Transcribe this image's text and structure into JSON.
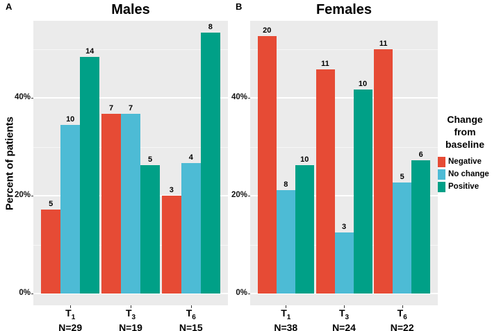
{
  "figure": {
    "panel_a_label": "A",
    "panel_b_label": "B",
    "y_axis_label": "Percent of patients",
    "y_ticks": [
      "0%",
      "20%",
      "40%"
    ],
    "background_color": "#FFFFFF",
    "panel_background_color": "#EBEBEB",
    "gridline_color": "#FFFFFF",
    "legend": {
      "position": "right",
      "title": "Change from baseline",
      "items": [
        {
          "label": "Negative",
          "color": "#E64B35"
        },
        {
          "label": "No change",
          "color": "#4DBBD5"
        },
        {
          "label": "Positive",
          "color": "#00A087"
        }
      ]
    }
  },
  "chart_data": [
    {
      "type": "bar",
      "panel": "A",
      "title": "Males",
      "ylabel": "Percent of patients",
      "ylim": [
        0,
        57
      ],
      "yticks_percent": [
        0,
        20,
        40
      ],
      "grid_major": [
        0,
        20,
        40
      ],
      "grid_minor": [
        10,
        30,
        50
      ],
      "categories": [
        {
          "label": "T",
          "sub": "1",
          "n": "N=29",
          "total": 29
        },
        {
          "label": "T",
          "sub": "3",
          "n": "N=19",
          "total": 19
        },
        {
          "label": "T",
          "sub": "6",
          "n": "N=15",
          "total": 15
        }
      ],
      "series": [
        {
          "name": "Negative",
          "color": "#E64B35",
          "counts": [
            5,
            7,
            3
          ],
          "percent": [
            17.2,
            36.8,
            20.0
          ]
        },
        {
          "name": "No change",
          "color": "#4DBBD5",
          "counts": [
            10,
            7,
            4
          ],
          "percent": [
            34.5,
            36.8,
            26.7
          ]
        },
        {
          "name": "Positive",
          "color": "#00A087",
          "counts": [
            14,
            5,
            8
          ],
          "percent": [
            48.3,
            26.3,
            53.3
          ]
        }
      ]
    },
    {
      "type": "bar",
      "panel": "B",
      "title": "Females",
      "ylabel": "Percent of patients",
      "ylim": [
        0,
        57
      ],
      "yticks_percent": [
        0,
        20,
        40
      ],
      "grid_major": [
        0,
        20,
        40
      ],
      "grid_minor": [
        10,
        30,
        50
      ],
      "categories": [
        {
          "label": "T",
          "sub": "1",
          "n": "N=38",
          "total": 38
        },
        {
          "label": "T",
          "sub": "3",
          "n": "N=24",
          "total": 24
        },
        {
          "label": "T",
          "sub": "6",
          "n": "N=22",
          "total": 22
        }
      ],
      "series": [
        {
          "name": "Negative",
          "color": "#E64B35",
          "counts": [
            20,
            11,
            11
          ],
          "percent": [
            52.6,
            45.8,
            50.0
          ]
        },
        {
          "name": "No change",
          "color": "#4DBBD5",
          "counts": [
            8,
            3,
            5
          ],
          "percent": [
            21.1,
            12.5,
            22.7
          ]
        },
        {
          "name": "Positive",
          "color": "#00A087",
          "counts": [
            10,
            10,
            6
          ],
          "percent": [
            26.3,
            41.7,
            27.3
          ]
        }
      ]
    }
  ]
}
